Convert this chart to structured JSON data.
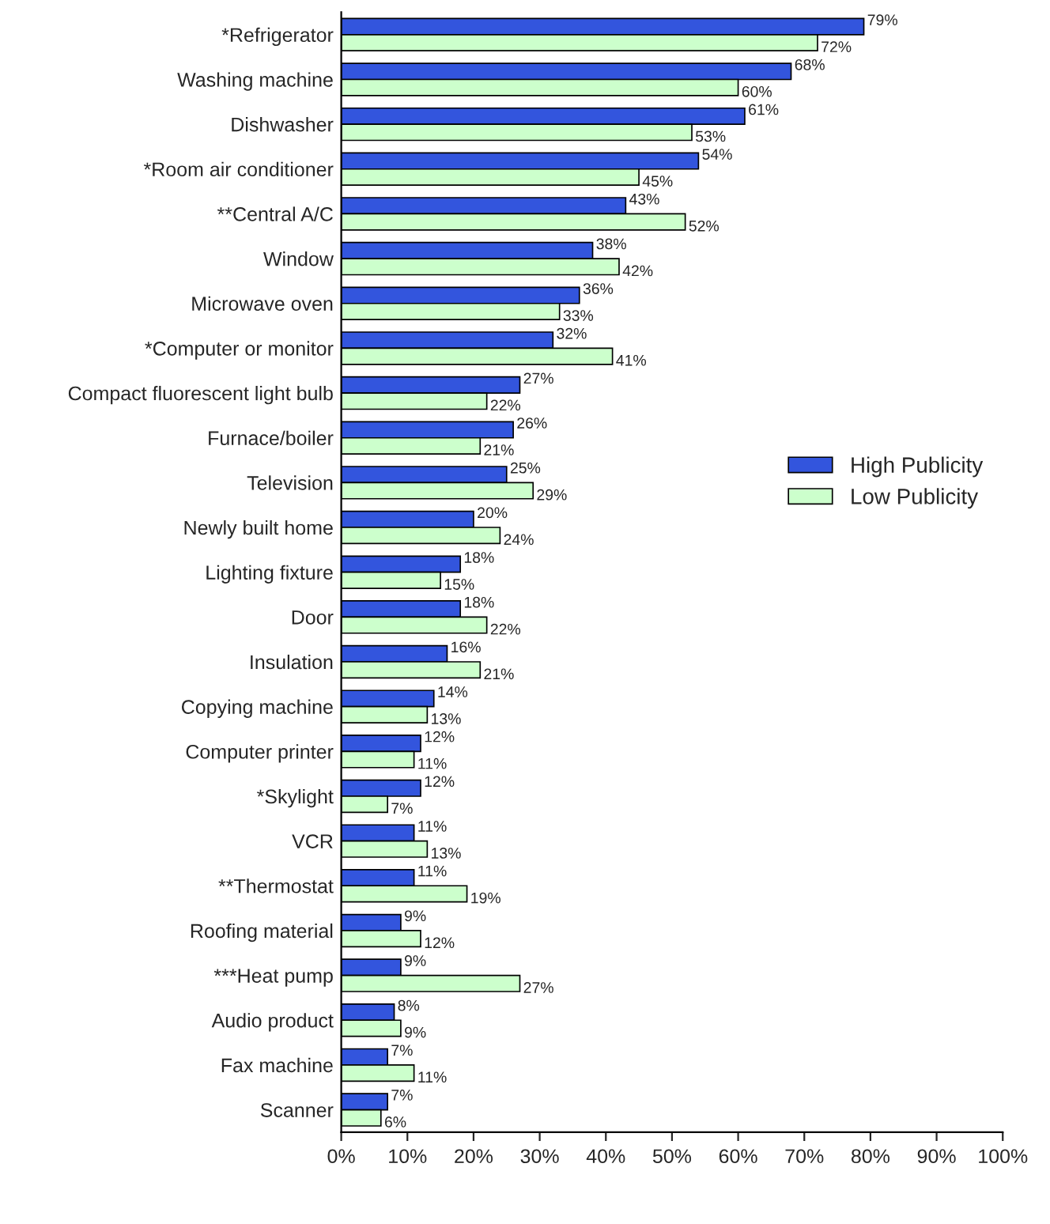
{
  "chart_data": {
    "type": "bar",
    "orientation": "horizontal",
    "categories": [
      "*Refrigerator",
      "Washing machine",
      "Dishwasher",
      "*Room air conditioner",
      "**Central A/C",
      "Window",
      "Microwave oven",
      "*Computer or monitor",
      "Compact fluorescent light bulb",
      "Furnace/boiler",
      "Television",
      "Newly built home",
      "Lighting fixture",
      "Door",
      "Insulation",
      "Copying machine",
      "Computer printer",
      "*Skylight",
      "VCR",
      "**Thermostat",
      "Roofing material",
      "***Heat pump",
      "Audio product",
      "Fax machine",
      "Scanner"
    ],
    "series": [
      {
        "name": "High Publicity",
        "color": "#3355dd",
        "values": [
          79,
          68,
          61,
          54,
          43,
          38,
          36,
          32,
          27,
          26,
          25,
          20,
          18,
          18,
          16,
          14,
          12,
          12,
          11,
          11,
          9,
          9,
          8,
          7,
          7
        ],
        "value_labels": [
          "79%",
          "68%",
          "61%",
          "54%",
          "43%",
          "38%",
          "36%",
          "32%",
          "27%",
          "26%",
          "25%",
          "20%",
          "18%",
          "18%",
          "16%",
          "14%",
          "12%",
          "12%",
          "11%",
          "11%",
          "9%",
          "9%",
          "8%",
          "7%",
          "7%"
        ]
      },
      {
        "name": "Low Publicity",
        "color": "#ccffcc",
        "values": [
          72,
          60,
          53,
          45,
          52,
          42,
          33,
          41,
          22,
          21,
          29,
          24,
          15,
          22,
          21,
          13,
          11,
          7,
          13,
          19,
          12,
          27,
          9,
          11,
          6
        ],
        "value_labels": [
          "72%",
          "60%",
          "53%",
          "45%",
          "52%",
          "42%",
          "33%",
          "41%",
          "22%",
          "21%",
          "29%",
          "24%",
          "15%",
          "22%",
          "21%",
          "13%",
          "11%",
          "7%",
          "13%",
          "19%",
          "12%",
          "27%",
          "9%",
          "11%",
          "6%"
        ]
      }
    ],
    "xlim": [
      0,
      100
    ],
    "xticks": [
      {
        "value": 0,
        "label": "0%"
      },
      {
        "value": 10,
        "label": "10%"
      },
      {
        "value": 20,
        "label": "20%"
      },
      {
        "value": 30,
        "label": "30%"
      },
      {
        "value": 40,
        "label": "40%"
      },
      {
        "value": 50,
        "label": "50%"
      },
      {
        "value": 60,
        "label": "60%"
      },
      {
        "value": 70,
        "label": "70%"
      },
      {
        "value": 80,
        "label": "80%"
      },
      {
        "value": 90,
        "label": "90%"
      },
      {
        "value": 100,
        "label": "100%"
      }
    ],
    "grid": false,
    "legend": "right"
  }
}
